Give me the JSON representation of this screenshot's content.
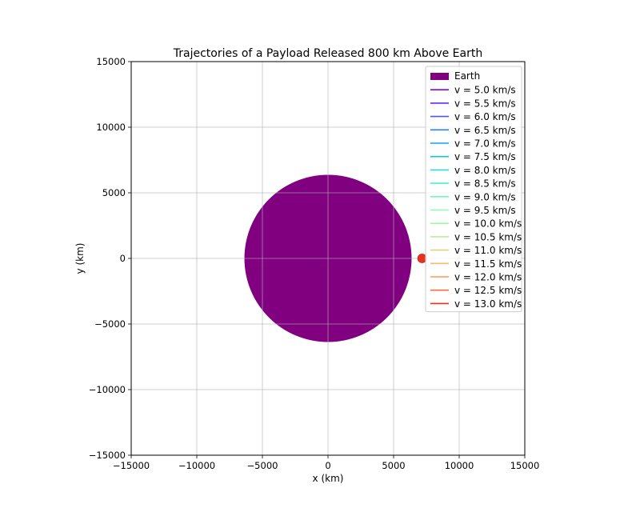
{
  "chart_data": {
    "type": "scatter",
    "title": "Trajectories of a Payload Released 800 km Above Earth",
    "xlabel": "x (km)",
    "ylabel": "y (km)",
    "xlim": [
      -15000,
      15000
    ],
    "ylim": [
      -15000,
      15000
    ],
    "xticks": [
      -15000,
      -10000,
      -5000,
      0,
      5000,
      10000,
      15000
    ],
    "yticks": [
      -15000,
      -10000,
      -5000,
      0,
      5000,
      10000,
      15000
    ],
    "xtick_labels": [
      "−15000",
      "−10000",
      "−5000",
      "0",
      "5000",
      "10000",
      "15000"
    ],
    "ytick_labels": [
      "−15000",
      "−10000",
      "−5000",
      "0",
      "5000",
      "10000",
      "15000"
    ],
    "grid": true,
    "legend_position": "top-right",
    "earth": {
      "label": "Earth",
      "center": [
        0,
        0
      ],
      "radius": 6371,
      "color": "#800080"
    },
    "release_point": {
      "x": 7171,
      "y": 0,
      "color": "#e8321e"
    },
    "series": [
      {
        "name": "v = 5.0 km/s",
        "color": "#8000ff"
      },
      {
        "name": "v = 5.5 km/s",
        "color": "#6629fe"
      },
      {
        "name": "v = 6.0 km/s",
        "color": "#4856fb"
      },
      {
        "name": "v = 6.5 km/s",
        "color": "#2c7ef7"
      },
      {
        "name": "v = 7.0 km/s",
        "color": "#10a2f0"
      },
      {
        "name": "v = 7.5 km/s",
        "color": "#0dc3e8"
      },
      {
        "name": "v = 8.0 km/s",
        "color": "#2adddd"
      },
      {
        "name": "v = 8.5 km/s",
        "color": "#48f1d1"
      },
      {
        "name": "v = 9.0 km/s",
        "color": "#66fcc3"
      },
      {
        "name": "v = 9.5 km/s",
        "color": "#84ffb3"
      },
      {
        "name": "v = 10.0 km/s",
        "color": "#a2f8a2"
      },
      {
        "name": "v = 10.5 km/s",
        "color": "#c0eb91"
      },
      {
        "name": "v = 11.0 km/s",
        "color": "#ddd57e"
      },
      {
        "name": "v = 11.5 km/s",
        "color": "#f9b96a"
      },
      {
        "name": "v = 12.0 km/s",
        "color": "#ff9855"
      },
      {
        "name": "v = 12.5 km/s",
        "color": "#ff6e40"
      },
      {
        "name": "v = 13.0 km/s",
        "color": "#ff2a15"
      }
    ]
  }
}
